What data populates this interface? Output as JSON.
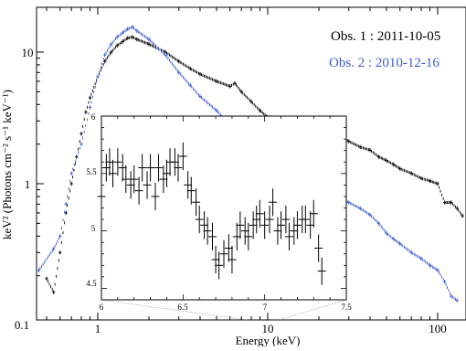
{
  "chart_data": {
    "type": "scatter",
    "xlabel": "Energy (keV)",
    "ylabel": "keV² (Photons cm⁻² s⁻¹ keV⁻¹)",
    "xscale": "log",
    "yscale": "log",
    "xlim": [
      0.4,
      150
    ],
    "ylim": [
      0.1,
      20
    ],
    "x_ticks": [
      "1",
      "10",
      "100"
    ],
    "y_ticks": [
      "0.1",
      "1",
      "10"
    ],
    "legend_position": "top-right",
    "series": [
      {
        "name": "Obs. 1 : 2011-10-05",
        "color": "#000000",
        "x": [
          0.5,
          0.55,
          0.6,
          0.65,
          0.7,
          0.75,
          0.8,
          0.85,
          0.9,
          1.0,
          1.1,
          1.2,
          1.3,
          1.4,
          1.5,
          1.6,
          1.7,
          2.0,
          2.5,
          3.0,
          3.5,
          4.0,
          5.0,
          6.0,
          6.4,
          7.0,
          8.0,
          9.0,
          10.0,
          15,
          20,
          25,
          30,
          35,
          40,
          45,
          50,
          55,
          60,
          70,
          80,
          90,
          100,
          110,
          120,
          130,
          140
        ],
        "y": [
          0.19,
          0.15,
          0.3,
          0.6,
          1.0,
          1.6,
          2.4,
          3.5,
          4.5,
          6.5,
          8.5,
          10.0,
          11.2,
          12.0,
          12.8,
          13.0,
          12.5,
          11.5,
          10.0,
          8.5,
          7.5,
          6.8,
          6.0,
          5.5,
          5.8,
          5.0,
          4.2,
          3.6,
          3.2,
          3.0,
          2.7,
          2.4,
          2.1,
          1.9,
          1.8,
          1.6,
          1.5,
          1.4,
          1.3,
          1.2,
          1.1,
          1.05,
          1.0,
          0.72,
          0.72,
          0.65,
          0.57
        ]
      },
      {
        "name": "Obs. 2 : 2010-12-16",
        "color": "#3a5bd9",
        "x": [
          0.45,
          0.55,
          0.6,
          0.65,
          0.7,
          0.8,
          0.9,
          1.0,
          1.1,
          1.2,
          1.3,
          1.4,
          1.5,
          1.6,
          1.7,
          2.0,
          2.5,
          3.0,
          3.5,
          4.0,
          5.0,
          6.0,
          7.0,
          8.0,
          9.0,
          10.0,
          15,
          20,
          25,
          30,
          35,
          40,
          45,
          50,
          55,
          60,
          70,
          80,
          90,
          100,
          110,
          120,
          130
        ],
        "y": [
          0.22,
          0.32,
          0.4,
          0.7,
          1.2,
          2.0,
          3.8,
          6.5,
          9.5,
          11.5,
          13.0,
          14.0,
          15.0,
          15.5,
          14.5,
          12.5,
          9.5,
          7.0,
          5.6,
          4.6,
          3.6,
          2.8,
          2.3,
          1.9,
          1.7,
          1.5,
          1.1,
          0.92,
          0.8,
          0.72,
          0.65,
          0.58,
          0.5,
          0.42,
          0.38,
          0.35,
          0.3,
          0.27,
          0.24,
          0.22,
          0.18,
          0.14,
          0.13
        ]
      }
    ],
    "inset": {
      "type": "scatter",
      "xlim": [
        6,
        7.5
      ],
      "ylim": [
        4.4,
        6.0
      ],
      "x_ticks": [
        "6",
        "6.5",
        "7",
        "7.5"
      ],
      "y_ticks": [
        "4.5",
        "5",
        "5.5",
        "6"
      ],
      "x": [
        6.0,
        6.03,
        6.05,
        6.07,
        6.1,
        6.13,
        6.15,
        6.18,
        6.2,
        6.23,
        6.25,
        6.28,
        6.3,
        6.33,
        6.35,
        6.38,
        6.4,
        6.42,
        6.45,
        6.47,
        6.5,
        6.53,
        6.55,
        6.58,
        6.6,
        6.63,
        6.65,
        6.68,
        6.7,
        6.72,
        6.75,
        6.78,
        6.8,
        6.83,
        6.85,
        6.88,
        6.9,
        6.93,
        6.95,
        6.97,
        7.0,
        7.03,
        7.05,
        7.08,
        7.1,
        7.13,
        7.15,
        7.18,
        7.2,
        7.23,
        7.25,
        7.28,
        7.3,
        7.33,
        7.35
      ],
      "y": [
        5.3,
        5.55,
        5.6,
        5.5,
        5.6,
        5.55,
        5.45,
        5.4,
        5.45,
        5.35,
        5.55,
        5.4,
        5.55,
        5.3,
        5.55,
        5.45,
        5.5,
        5.6,
        5.6,
        5.55,
        5.65,
        5.4,
        5.35,
        5.25,
        5.1,
        5.05,
        5.0,
        4.95,
        4.75,
        4.7,
        4.8,
        4.85,
        4.75,
        4.95,
        5.05,
        5.0,
        4.95,
        5.05,
        5.1,
        5.15,
        5.05,
        5.1,
        5.25,
        5.0,
        5.05,
        5.1,
        4.95,
        5.0,
        5.05,
        5.1,
        5.1,
        5.05,
        5.15,
        4.85,
        4.65
      ],
      "err": 0.12
    },
    "legend": [
      "Obs. 1 : 2011-10-05",
      "Obs. 2 : 2010-12-16"
    ]
  }
}
